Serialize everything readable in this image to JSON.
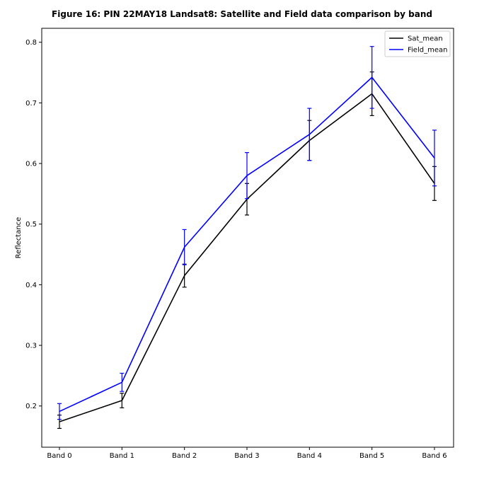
{
  "chart_data": {
    "type": "line",
    "title": "Figure 16: PIN 22MAY18  Landsat8: Satellite and Field data comparison by band",
    "xlabel": "",
    "ylabel": "Reflectance",
    "categories": [
      "Band 0",
      "Band 1",
      "Band 2",
      "Band 3",
      "Band 4",
      "Band 5",
      "Band 6"
    ],
    "ylim": [
      0.132,
      0.823
    ],
    "yticks": [
      0.2,
      0.3,
      0.4,
      0.5,
      0.6,
      0.7,
      0.8
    ],
    "ytick_labels": [
      "0.2",
      "0.3",
      "0.4",
      "0.5",
      "0.6",
      "0.7",
      "0.8"
    ],
    "grid": false,
    "legend": "upper right",
    "series": [
      {
        "name": "Sat_mean",
        "color": "#000000",
        "values": [
          0.174,
          0.209,
          0.415,
          0.541,
          0.638,
          0.715,
          0.567
        ],
        "errors": [
          0.011,
          0.012,
          0.019,
          0.026,
          0.033,
          0.036,
          0.028
        ]
      },
      {
        "name": "Field_mean",
        "color": "#0000ff",
        "values": [
          0.191,
          0.239,
          0.462,
          0.58,
          0.648,
          0.742,
          0.609
        ],
        "errors": [
          0.013,
          0.015,
          0.029,
          0.038,
          0.043,
          0.051,
          0.046
        ]
      }
    ]
  }
}
